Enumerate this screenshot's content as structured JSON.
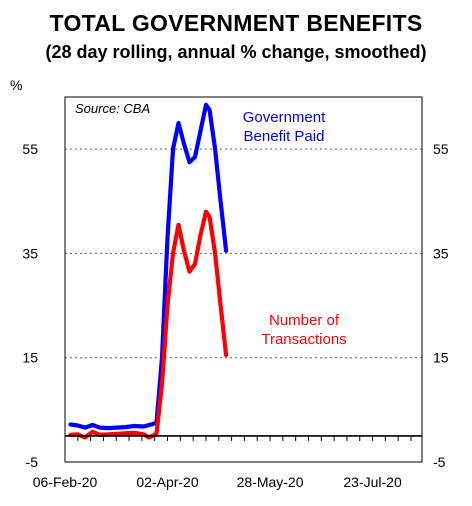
{
  "chart_data": {
    "type": "line",
    "title": "TOTAL GOVERNMENT BENEFITS",
    "subtitle": "(28 day rolling, annual % change, smoothed)",
    "ylabel": "%",
    "source": "Source: CBA",
    "ylim": [
      -5,
      65
    ],
    "yticks": [
      -5,
      15,
      35,
      55
    ],
    "xlim": [
      "2020-02-06",
      "2020-08-19"
    ],
    "xticks": [
      {
        "date": "2020-02-06",
        "label": "06-Feb-20"
      },
      {
        "date": "2020-04-02",
        "label": "02-Apr-20"
      },
      {
        "date": "2020-05-28",
        "label": "28-May-20"
      },
      {
        "date": "2020-07-23",
        "label": "23-Jul-20"
      }
    ],
    "grid": "horizontal dotted",
    "series": [
      {
        "name": "Government Benefit Paid",
        "label_lines": [
          "Government",
          "Benefit Paid"
        ],
        "color": "#0000ff",
        "points": [
          [
            "2020-02-09",
            2.2
          ],
          [
            "2020-02-13",
            2.0
          ],
          [
            "2020-02-17",
            1.6
          ],
          [
            "2020-02-21",
            2.1
          ],
          [
            "2020-02-25",
            1.6
          ],
          [
            "2020-03-01",
            1.5
          ],
          [
            "2020-03-05",
            1.6
          ],
          [
            "2020-03-10",
            1.7
          ],
          [
            "2020-03-15",
            1.9
          ],
          [
            "2020-03-20",
            1.8
          ],
          [
            "2020-03-23",
            2.1
          ],
          [
            "2020-03-27",
            2.5
          ],
          [
            "2020-03-30",
            15.0
          ],
          [
            "2020-04-02",
            38.0
          ],
          [
            "2020-04-05",
            55.0
          ],
          [
            "2020-04-08",
            60.0
          ],
          [
            "2020-04-11",
            56.0
          ],
          [
            "2020-04-14",
            52.5
          ],
          [
            "2020-04-17",
            53.5
          ],
          [
            "2020-04-20",
            58.5
          ],
          [
            "2020-04-23",
            63.5
          ],
          [
            "2020-04-25",
            62.5
          ],
          [
            "2020-04-28",
            55.0
          ],
          [
            "2020-05-01",
            45.0
          ],
          [
            "2020-05-04",
            35.5
          ]
        ]
      },
      {
        "name": "Number of Transactions",
        "label_lines": [
          "Number of",
          "Transactions"
        ],
        "color": "#ff0000",
        "points": [
          [
            "2020-02-09",
            0.2
          ],
          [
            "2020-02-13",
            0.3
          ],
          [
            "2020-02-17",
            -0.3
          ],
          [
            "2020-02-21",
            0.8
          ],
          [
            "2020-02-25",
            0.2
          ],
          [
            "2020-03-01",
            0.3
          ],
          [
            "2020-03-05",
            0.4
          ],
          [
            "2020-03-10",
            0.5
          ],
          [
            "2020-03-15",
            0.6
          ],
          [
            "2020-03-20",
            0.3
          ],
          [
            "2020-03-23",
            -0.3
          ],
          [
            "2020-03-27",
            0.4
          ],
          [
            "2020-03-30",
            10.0
          ],
          [
            "2020-04-02",
            25.0
          ],
          [
            "2020-04-05",
            35.0
          ],
          [
            "2020-04-08",
            40.5
          ],
          [
            "2020-04-11",
            35.5
          ],
          [
            "2020-04-14",
            31.5
          ],
          [
            "2020-04-17",
            33.0
          ],
          [
            "2020-04-20",
            38.5
          ],
          [
            "2020-04-23",
            43.0
          ],
          [
            "2020-04-25",
            42.0
          ],
          [
            "2020-04-28",
            35.0
          ],
          [
            "2020-05-01",
            25.0
          ],
          [
            "2020-05-04",
            15.5
          ]
        ]
      }
    ]
  }
}
